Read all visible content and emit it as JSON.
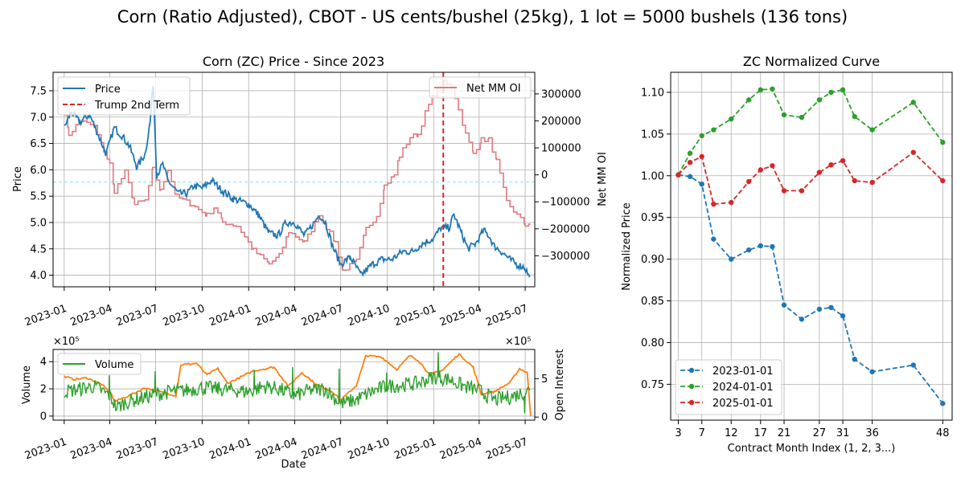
{
  "figure_title": "Corn (Ratio Adjusted), CBOT - US cents/bushel (25kg), 1 lot = 5000 bushels (136 tons)",
  "colors": {
    "price": "#1f77b4",
    "trump": "#d62728",
    "net_mm": "#e07b7f",
    "zero_line": "#7fe9f0",
    "volume": "#2ca02c",
    "open_interest": "#ff7f0e",
    "curve_2023": "#1f77b4",
    "curve_2024": "#2ca02c",
    "curve_2025": "#d62728"
  },
  "chart_data": [
    {
      "id": "price",
      "type": "line",
      "title": "Corn (ZC) Price - Since 2023",
      "ylabel": "Price",
      "y2label": "Net MM OI",
      "ylim": [
        3.78,
        7.85
      ],
      "y2lim": [
        -415000,
        380000
      ],
      "xlim": [
        "2022-12-10",
        "2025-07-20"
      ],
      "x_ticks": [
        "2023-01",
        "2023-04",
        "2023-07",
        "2023-10",
        "2024-01",
        "2024-04",
        "2024-07",
        "2024-10",
        "2025-01",
        "2025-04",
        "2025-07"
      ],
      "y_ticks": [
        "4.0",
        "4.5",
        "5.0",
        "5.5",
        "6.0",
        "6.5",
        "7.0",
        "7.5"
      ],
      "y2_ticks": [
        "300000",
        "200000",
        "100000",
        "0",
        "−100000",
        "−200000",
        "−300000"
      ],
      "grid": true,
      "legend": [
        "Price",
        "Trump 2nd Term"
      ],
      "legend_right": [
        "Net MM OI"
      ],
      "price_series": [
        [
          "2023-01-01",
          6.8
        ],
        [
          "2023-01-15",
          7.1
        ],
        [
          "2023-02-01",
          6.9
        ],
        [
          "2023-02-20",
          7.05
        ],
        [
          "2023-03-10",
          6.65
        ],
        [
          "2023-03-25",
          6.3
        ],
        [
          "2023-04-10",
          6.8
        ],
        [
          "2023-04-25",
          6.65
        ],
        [
          "2023-05-10",
          6.45
        ],
        [
          "2023-05-25",
          6.05
        ],
        [
          "2023-06-10",
          6.3
        ],
        [
          "2023-06-20",
          6.9
        ],
        [
          "2023-06-26",
          7.65
        ],
        [
          "2023-07-03",
          5.9
        ],
        [
          "2023-07-15",
          6.1
        ],
        [
          "2023-07-25",
          5.8
        ],
        [
          "2023-08-15",
          5.55
        ],
        [
          "2023-09-01",
          5.55
        ],
        [
          "2023-09-15",
          5.7
        ],
        [
          "2023-10-01",
          5.65
        ],
        [
          "2023-10-20",
          5.8
        ],
        [
          "2023-11-10",
          5.6
        ],
        [
          "2023-12-01",
          5.45
        ],
        [
          "2024-01-01",
          5.35
        ],
        [
          "2024-01-20",
          5.15
        ],
        [
          "2024-02-10",
          4.8
        ],
        [
          "2024-02-28",
          4.75
        ],
        [
          "2024-03-15",
          5.0
        ],
        [
          "2024-04-01",
          5.0
        ],
        [
          "2024-04-20",
          4.75
        ],
        [
          "2024-05-10",
          5.0
        ],
        [
          "2024-05-20",
          5.15
        ],
        [
          "2024-06-01",
          5.0
        ],
        [
          "2024-06-15",
          4.55
        ],
        [
          "2024-07-01",
          4.2
        ],
        [
          "2024-07-20",
          4.35
        ],
        [
          "2024-08-10",
          4.0
        ],
        [
          "2024-09-01",
          4.2
        ],
        [
          "2024-09-20",
          4.3
        ],
        [
          "2024-10-10",
          4.3
        ],
        [
          "2024-11-01",
          4.45
        ],
        [
          "2024-11-20",
          4.45
        ],
        [
          "2024-12-10",
          4.6
        ],
        [
          "2025-01-01",
          4.7
        ],
        [
          "2025-01-15",
          4.9
        ],
        [
          "2025-02-01",
          4.9
        ],
        [
          "2025-02-10",
          5.15
        ],
        [
          "2025-02-25",
          4.8
        ],
        [
          "2025-03-10",
          4.5
        ],
        [
          "2025-03-25",
          4.6
        ],
        [
          "2025-04-10",
          4.85
        ],
        [
          "2025-04-20",
          4.75
        ],
        [
          "2025-05-01",
          4.55
        ],
        [
          "2025-05-15",
          4.45
        ],
        [
          "2025-06-01",
          4.3
        ],
        [
          "2025-06-15",
          4.2
        ],
        [
          "2025-06-30",
          4.15
        ],
        [
          "2025-07-10",
          3.96
        ]
      ],
      "net_mm_series": [
        [
          "2023-01-01",
          230000
        ],
        [
          "2023-01-10",
          150000
        ],
        [
          "2023-02-01",
          200000
        ],
        [
          "2023-03-01",
          180000
        ],
        [
          "2023-03-20",
          90000
        ],
        [
          "2023-04-01",
          40000
        ],
        [
          "2023-04-10",
          -60000
        ],
        [
          "2023-05-01",
          10000
        ],
        [
          "2023-05-20",
          -110000
        ],
        [
          "2023-06-10",
          -95000
        ],
        [
          "2023-06-25",
          20000
        ],
        [
          "2023-07-10",
          -60000
        ],
        [
          "2023-07-25",
          20000
        ],
        [
          "2023-08-10",
          -80000
        ],
        [
          "2023-09-10",
          -110000
        ],
        [
          "2023-10-10",
          -150000
        ],
        [
          "2023-10-25",
          -120000
        ],
        [
          "2023-11-10",
          -175000
        ],
        [
          "2023-12-10",
          -190000
        ],
        [
          "2024-01-10",
          -280000
        ],
        [
          "2024-02-10",
          -330000
        ],
        [
          "2024-03-01",
          -300000
        ],
        [
          "2024-03-20",
          -210000
        ],
        [
          "2024-04-20",
          -250000
        ],
        [
          "2024-05-20",
          -150000
        ],
        [
          "2024-06-20",
          -250000
        ],
        [
          "2024-07-05",
          -355000
        ],
        [
          "2024-08-01",
          -320000
        ],
        [
          "2024-08-20",
          -200000
        ],
        [
          "2024-09-10",
          -150000
        ],
        [
          "2024-09-25",
          -40000
        ],
        [
          "2024-10-15",
          0
        ],
        [
          "2024-10-25",
          70000
        ],
        [
          "2024-11-15",
          140000
        ],
        [
          "2024-12-01",
          150000
        ],
        [
          "2024-12-15",
          230000
        ],
        [
          "2025-01-01",
          300000
        ],
        [
          "2025-01-20",
          340000
        ],
        [
          "2025-02-05",
          330000
        ],
        [
          "2025-02-20",
          240000
        ],
        [
          "2025-03-05",
          150000
        ],
        [
          "2025-03-20",
          80000
        ],
        [
          "2025-04-05",
          130000
        ],
        [
          "2025-04-20",
          130000
        ],
        [
          "2025-05-05",
          50000
        ],
        [
          "2025-05-25",
          -100000
        ],
        [
          "2025-06-15",
          -150000
        ],
        [
          "2025-07-01",
          -185000
        ],
        [
          "2025-07-10",
          -180000
        ]
      ],
      "trump_line_date": "2025-01-20",
      "zero_line_price": 5.77
    },
    {
      "id": "volume",
      "type": "line",
      "xlabel": "Date",
      "ylabel": "Volume",
      "y2label": "Open Interest",
      "y_multiplier": "×10⁵",
      "y2_multiplier": "×10⁵",
      "ylim": [
        -0.3,
        4.9
      ],
      "y2lim": [
        -0.4,
        8.8
      ],
      "xlim": [
        "2022-12-10",
        "2025-07-20"
      ],
      "x_ticks": [
        "2023-01",
        "2023-04",
        "2023-07",
        "2023-10",
        "2024-01",
        "2024-04",
        "2024-07",
        "2024-10",
        "2025-01",
        "2025-04",
        "2025-07"
      ],
      "y_ticks": [
        "0",
        "2",
        "4"
      ],
      "y2_ticks": [
        "0",
        "5"
      ],
      "grid": true,
      "legend": [
        "Volume"
      ],
      "volume_series": [
        [
          "2023-01-01",
          1.8
        ],
        [
          "2023-02-01",
          2.0
        ],
        [
          "2023-03-01",
          2.2
        ],
        [
          "2023-04-01",
          1.5
        ],
        [
          "2023-04-15",
          0.6
        ],
        [
          "2023-05-01",
          1.0
        ],
        [
          "2023-06-01",
          1.3
        ],
        [
          "2023-07-01",
          1.6
        ],
        [
          "2023-08-01",
          1.8
        ],
        [
          "2023-09-01",
          1.9
        ],
        [
          "2023-10-01",
          2.1
        ],
        [
          "2023-11-01",
          2.0
        ],
        [
          "2023-12-01",
          1.9
        ],
        [
          "2024-01-01",
          1.8
        ],
        [
          "2024-02-01",
          2.2
        ],
        [
          "2024-03-01",
          2.0
        ],
        [
          "2024-04-01",
          1.5
        ],
        [
          "2024-05-01",
          1.9
        ],
        [
          "2024-06-01",
          2.0
        ],
        [
          "2024-07-01",
          0.9
        ],
        [
          "2024-08-01",
          1.2
        ],
        [
          "2024-09-01",
          1.8
        ],
        [
          "2024-10-01",
          2.2
        ],
        [
          "2024-11-01",
          2.3
        ],
        [
          "2024-12-01",
          2.4
        ],
        [
          "2025-01-01",
          2.9
        ],
        [
          "2025-02-01",
          2.7
        ],
        [
          "2025-03-01",
          2.2
        ],
        [
          "2025-04-01",
          1.9
        ],
        [
          "2025-05-01",
          1.2
        ],
        [
          "2025-06-01",
          1.4
        ],
        [
          "2025-07-10",
          1.9
        ]
      ],
      "volume_spikes": [
        [
          "2023-03-31",
          3.0
        ],
        [
          "2023-06-30",
          3.3
        ],
        [
          "2024-01-12",
          3.4
        ],
        [
          "2024-03-28",
          3.6
        ],
        [
          "2024-06-28",
          3.5
        ],
        [
          "2024-09-30",
          3.2
        ],
        [
          "2025-01-10",
          4.7
        ],
        [
          "2025-03-31",
          2.3
        ],
        [
          "2025-06-30",
          0.2
        ]
      ],
      "open_interest_series": [
        [
          "2023-01-01",
          5.3
        ],
        [
          "2023-01-20",
          4.9
        ],
        [
          "2023-02-15",
          5.1
        ],
        [
          "2023-03-15",
          4.3
        ],
        [
          "2023-04-05",
          3.0
        ],
        [
          "2023-04-10",
          2.0
        ],
        [
          "2023-05-10",
          2.8
        ],
        [
          "2023-06-10",
          3.8
        ],
        [
          "2023-07-10",
          3.3
        ],
        [
          "2023-08-10",
          2.8
        ],
        [
          "2023-08-20",
          6.8
        ],
        [
          "2023-09-20",
          7.0
        ],
        [
          "2023-10-10",
          5.5
        ],
        [
          "2023-11-01",
          6.3
        ],
        [
          "2023-11-20",
          4.4
        ],
        [
          "2023-12-10",
          5.0
        ],
        [
          "2024-01-10",
          6.0
        ],
        [
          "2024-02-20",
          6.5
        ],
        [
          "2024-03-20",
          4.0
        ],
        [
          "2024-04-15",
          5.8
        ],
        [
          "2024-05-15",
          4.2
        ],
        [
          "2024-06-15",
          3.3
        ],
        [
          "2024-07-01",
          2.2
        ],
        [
          "2024-08-01",
          4.1
        ],
        [
          "2024-08-20",
          8.0
        ],
        [
          "2024-09-20",
          7.8
        ],
        [
          "2024-10-20",
          6.2
        ],
        [
          "2024-11-15",
          8.0
        ],
        [
          "2024-12-01",
          7.4
        ],
        [
          "2024-12-25",
          5.5
        ],
        [
          "2025-01-20",
          6.2
        ],
        [
          "2025-02-20",
          8.2
        ],
        [
          "2025-03-20",
          6.5
        ],
        [
          "2025-04-05",
          3.0
        ],
        [
          "2025-05-01",
          3.3
        ],
        [
          "2025-06-01",
          4.5
        ],
        [
          "2025-06-20",
          6.3
        ],
        [
          "2025-07-05",
          5.8
        ],
        [
          "2025-07-12",
          0.1
        ]
      ]
    },
    {
      "id": "curve",
      "type": "line",
      "title": "ZC Normalized Curve",
      "xlabel": "Contract Month Index (1, 2, 3...)",
      "ylabel": "Normalized Price",
      "xlim": [
        1.7,
        49.6
      ],
      "ylim": [
        0.707,
        1.124
      ],
      "x_ticks": [
        3,
        7,
        12,
        17,
        21,
        27,
        31,
        36,
        48
      ],
      "y_ticks": [
        "0.75",
        "0.80",
        "0.85",
        "0.90",
        "0.95",
        "1.00",
        "1.05",
        "1.10"
      ],
      "grid": true,
      "legend_position": "lower-left",
      "series": [
        {
          "name": "2023-01-01",
          "x": [
            3,
            5,
            7,
            9,
            12,
            15,
            17,
            19,
            21,
            24,
            27,
            29,
            31,
            33,
            36,
            43,
            48
          ],
          "y": [
            1.001,
            0.999,
            0.99,
            0.924,
            0.9,
            0.911,
            0.916,
            0.915,
            0.845,
            0.828,
            0.84,
            0.842,
            0.832,
            0.78,
            0.765,
            0.773,
            0.727
          ]
        },
        {
          "name": "2024-01-01",
          "x": [
            3,
            5,
            7,
            9,
            12,
            15,
            17,
            19,
            21,
            24,
            27,
            29,
            31,
            33,
            36,
            43,
            48
          ],
          "y": [
            1.001,
            1.027,
            1.048,
            1.055,
            1.068,
            1.091,
            1.103,
            1.104,
            1.073,
            1.07,
            1.091,
            1.1,
            1.103,
            1.071,
            1.055,
            1.088,
            1.04
          ]
        },
        {
          "name": "2025-01-01",
          "x": [
            3,
            5,
            7,
            9,
            12,
            15,
            17,
            19,
            21,
            24,
            27,
            29,
            31,
            33,
            36,
            43,
            48
          ],
          "y": [
            1.001,
            1.016,
            1.023,
            0.966,
            0.968,
            0.993,
            1.007,
            1.012,
            0.982,
            0.982,
            1.004,
            1.013,
            1.018,
            0.994,
            0.992,
            1.028,
            0.994
          ]
        }
      ]
    }
  ]
}
